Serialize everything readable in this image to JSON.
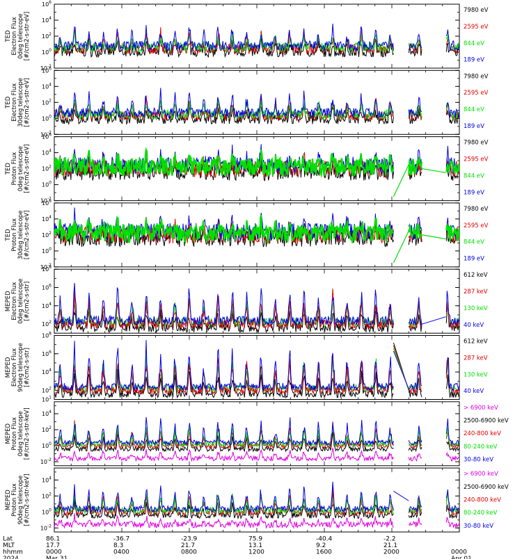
{
  "colors": {
    "black": "#000000",
    "red": "#e00000",
    "green": "#00e000",
    "blue": "#0000e0",
    "magenta": "#e000e0"
  },
  "chart_data": [
    {
      "type": "line",
      "ylabel": [
        "TED",
        "Electron Flux",
        "0deg telescope",
        "[#/cm2-s-str-eV]"
      ],
      "yscale": "log",
      "yticks": [
        "10^-2",
        "10^0",
        "10^2",
        "10^4",
        "10^6"
      ],
      "ylim_exp": [
        -2,
        6
      ],
      "base_exp": 0.4,
      "spike_height": 2.6,
      "noise": 0.6,
      "layer_order": [
        "black",
        "red",
        "green",
        "blue"
      ],
      "gap_tail": "none",
      "series": [
        {
          "name": "7980 eV",
          "color": "black"
        },
        {
          "name": "2595 eV",
          "color": "red"
        },
        {
          "name": "844 eV",
          "color": "green"
        },
        {
          "name": "189 eV",
          "color": "blue"
        }
      ]
    },
    {
      "type": "line",
      "ylabel": [
        "TED",
        "Electron Flux",
        "30deg telescope",
        "[#/cm2-s-str-eV]"
      ],
      "yscale": "log",
      "yticks": [
        "10^-2",
        "10^0",
        "10^2",
        "10^4",
        "10^6"
      ],
      "ylim_exp": [
        -2,
        6
      ],
      "base_exp": 0.3,
      "spike_height": 2.6,
      "noise": 0.6,
      "layer_order": [
        "black",
        "red",
        "green",
        "blue"
      ],
      "gap_tail": "none",
      "series": [
        {
          "name": "7980 eV",
          "color": "black"
        },
        {
          "name": "2595 eV",
          "color": "red"
        },
        {
          "name": "844 eV",
          "color": "green"
        },
        {
          "name": "189 eV",
          "color": "blue"
        }
      ]
    },
    {
      "type": "line",
      "ylabel": [
        "TED",
        "Proton Flux",
        "0deg telescope",
        "[#/cm2-s-str-eV]"
      ],
      "yscale": "log",
      "yticks": [
        "10^-2",
        "10^0",
        "10^2",
        "10^4",
        "10^6"
      ],
      "ylim_exp": [
        -2,
        6
      ],
      "base_exp": 2.0,
      "spike_height": 1.8,
      "noise": 1.1,
      "layer_order": [
        "black",
        "red",
        "blue",
        "green"
      ],
      "gap_tail": "green-line",
      "series": [
        {
          "name": "7980 eV",
          "color": "black"
        },
        {
          "name": "2595 eV",
          "color": "red"
        },
        {
          "name": "844 eV",
          "color": "green"
        },
        {
          "name": "189 eV",
          "color": "blue"
        }
      ]
    },
    {
      "type": "line",
      "ylabel": [
        "TED",
        "Proton Flux",
        "30deg telescope",
        "[#/cm2-s-str-eV]"
      ],
      "yscale": "log",
      "yticks": [
        "10^-2",
        "10^0",
        "10^2",
        "10^4",
        "10^6"
      ],
      "ylim_exp": [
        -2,
        6
      ],
      "base_exp": 2.0,
      "spike_height": 1.8,
      "noise": 1.1,
      "layer_order": [
        "black",
        "red",
        "blue",
        "green"
      ],
      "gap_tail": "green-line",
      "series": [
        {
          "name": "7980 eV",
          "color": "black"
        },
        {
          "name": "2595 eV",
          "color": "red"
        },
        {
          "name": "844 eV",
          "color": "green"
        },
        {
          "name": "189 eV",
          "color": "blue"
        }
      ]
    },
    {
      "type": "line",
      "ylabel": [
        "MEPED",
        "Electron Flux",
        "0deg telescope",
        "[#/cm2-s-str]"
      ],
      "yscale": "log",
      "yticks": [
        "10^2",
        "10^4",
        "10^6",
        "10^8"
      ],
      "ylim_exp": [
        1,
        8
      ],
      "base_exp": 2.0,
      "spike_height": 3.8,
      "noise": 0.5,
      "layer_order": [
        "black",
        "green",
        "red",
        "blue"
      ],
      "gap_tail": "flat",
      "series": [
        {
          "name": "612 keV",
          "color": "black"
        },
        {
          "name": "287 keV",
          "color": "red"
        },
        {
          "name": "130 keV",
          "color": "green"
        },
        {
          "name": "40 keV",
          "color": "blue"
        }
      ]
    },
    {
      "type": "line",
      "ylabel": [
        "MEPED",
        "Electron Flux",
        "90deg telescope",
        "[#/cm2-s-str]"
      ],
      "yscale": "log",
      "yticks": [
        "10^1",
        "10^2",
        "10^4",
        "10^6",
        "10^8"
      ],
      "ylim_exp": [
        1,
        8
      ],
      "base_exp": 2.0,
      "spike_height": 4.8,
      "noise": 0.4,
      "layer_order": [
        "green",
        "black",
        "red",
        "blue"
      ],
      "gap_tail": "cross",
      "series": [
        {
          "name": "612 keV",
          "color": "black"
        },
        {
          "name": "287 keV",
          "color": "red"
        },
        {
          "name": "130 keV",
          "color": "green"
        },
        {
          "name": "40 keV",
          "color": "blue"
        }
      ]
    },
    {
      "type": "line",
      "ylabel": [
        "MEPED",
        "Proton Flux",
        "0deg telescope",
        "[#/cm2-s-str-keV]"
      ],
      "yscale": "log",
      "yticks": [
        "10^-2",
        "10^0",
        "10^2",
        "10^4"
      ],
      "ylim_exp": [
        -2.5,
        5.5
      ],
      "base_exp": 0.0,
      "spike_height": 3.2,
      "noise": 0.3,
      "layer_order": [
        "magenta",
        "black",
        "red",
        "green",
        "blue"
      ],
      "gap_tail": "none",
      "series": [
        {
          "name": "> 6900 keV",
          "color": "magenta"
        },
        {
          "name": "2500-6900 keV",
          "color": "black"
        },
        {
          "name": "240-800 keV",
          "color": "red"
        },
        {
          "name": "80-240 keV",
          "color": "green"
        },
        {
          "name": "30-80 keV",
          "color": "blue"
        }
      ]
    },
    {
      "type": "line",
      "ylabel": [
        "MEPED",
        "Proton Flux",
        "90deg telescope",
        "[#/cm2-s-str-keV]"
      ],
      "yscale": "log",
      "yticks": [
        "10^-2",
        "10^0",
        "10^2",
        "10^4"
      ],
      "ylim_exp": [
        -2.5,
        5.5
      ],
      "base_exp": 0.0,
      "spike_height": 3.0,
      "noise": 0.4,
      "layer_order": [
        "magenta",
        "black",
        "red",
        "green",
        "blue"
      ],
      "gap_tail": "blue-line",
      "series": [
        {
          "name": "> 6900 keV",
          "color": "magenta"
        },
        {
          "name": "2500-6900 keV",
          "color": "black"
        },
        {
          "name": "240-800 keV",
          "color": "red"
        },
        {
          "name": "80-240 keV",
          "color": "green"
        },
        {
          "name": "30-80 keV",
          "color": "blue"
        }
      ]
    }
  ],
  "x_axis": {
    "row_labels": [
      "Lat",
      "MLT",
      "hhmm",
      "2024"
    ],
    "ticks": [
      {
        "lat": "86.1",
        "mlt": "17.7",
        "hhmm": "0000",
        "date": "Mar 31"
      },
      {
        "lat": "-36.7",
        "mlt": "8.3",
        "hhmm": "0400",
        "date": ""
      },
      {
        "lat": "-23.9",
        "mlt": "21.7",
        "hhmm": "0800",
        "date": ""
      },
      {
        "lat": "75.9",
        "mlt": "13.1",
        "hhmm": "1200",
        "date": ""
      },
      {
        "lat": "-40.4",
        "mlt": "9.2",
        "hhmm": "1600",
        "date": ""
      },
      {
        "lat": "-2.2",
        "mlt": "21.1",
        "hhmm": "2000",
        "date": ""
      },
      {
        "lat": "",
        "mlt": "",
        "hhmm": "0000",
        "date": "Apr 01"
      }
    ],
    "range_hours": [
      0,
      24
    ],
    "data_gaps_hours": [
      [
        20.1,
        21.0
      ],
      [
        21.8,
        23.2
      ]
    ]
  }
}
